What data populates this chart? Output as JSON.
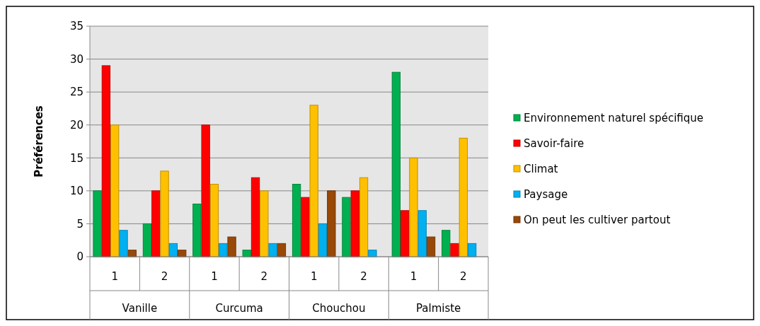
{
  "chart_data": {
    "type": "bar",
    "ylabel": "Préférences",
    "categories": [
      "1",
      "2",
      "1",
      "2",
      "1",
      "2",
      "1",
      "2"
    ],
    "annotations": [
      "Vanille",
      "Curcuma",
      "Chouchou",
      "Palmiste"
    ],
    "series": [
      {
        "name": "Environnement naturel spécifique",
        "color": "#00b050",
        "values": [
          10,
          5,
          8,
          1,
          11,
          9,
          28,
          4
        ]
      },
      {
        "name": "Savoir-faire",
        "color": "#ff0000",
        "values": [
          29,
          10,
          20,
          12,
          9,
          10,
          7,
          2
        ]
      },
      {
        "name": "Climat",
        "color": "#ffc000",
        "values": [
          20,
          13,
          11,
          10,
          23,
          12,
          15,
          18
        ]
      },
      {
        "name": "Paysage",
        "color": "#00b0f0",
        "values": [
          4,
          2,
          2,
          2,
          5,
          1,
          7,
          2
        ]
      },
      {
        "name": "On peut les cultiver partout",
        "color": "#984807",
        "values": [
          1,
          1,
          3,
          2,
          10,
          0,
          3,
          0
        ]
      }
    ],
    "ylim": [
      0,
      35
    ],
    "yticks": [
      0,
      5,
      10,
      15,
      20,
      25,
      30,
      35
    ],
    "grid": "y",
    "legend": "right"
  }
}
